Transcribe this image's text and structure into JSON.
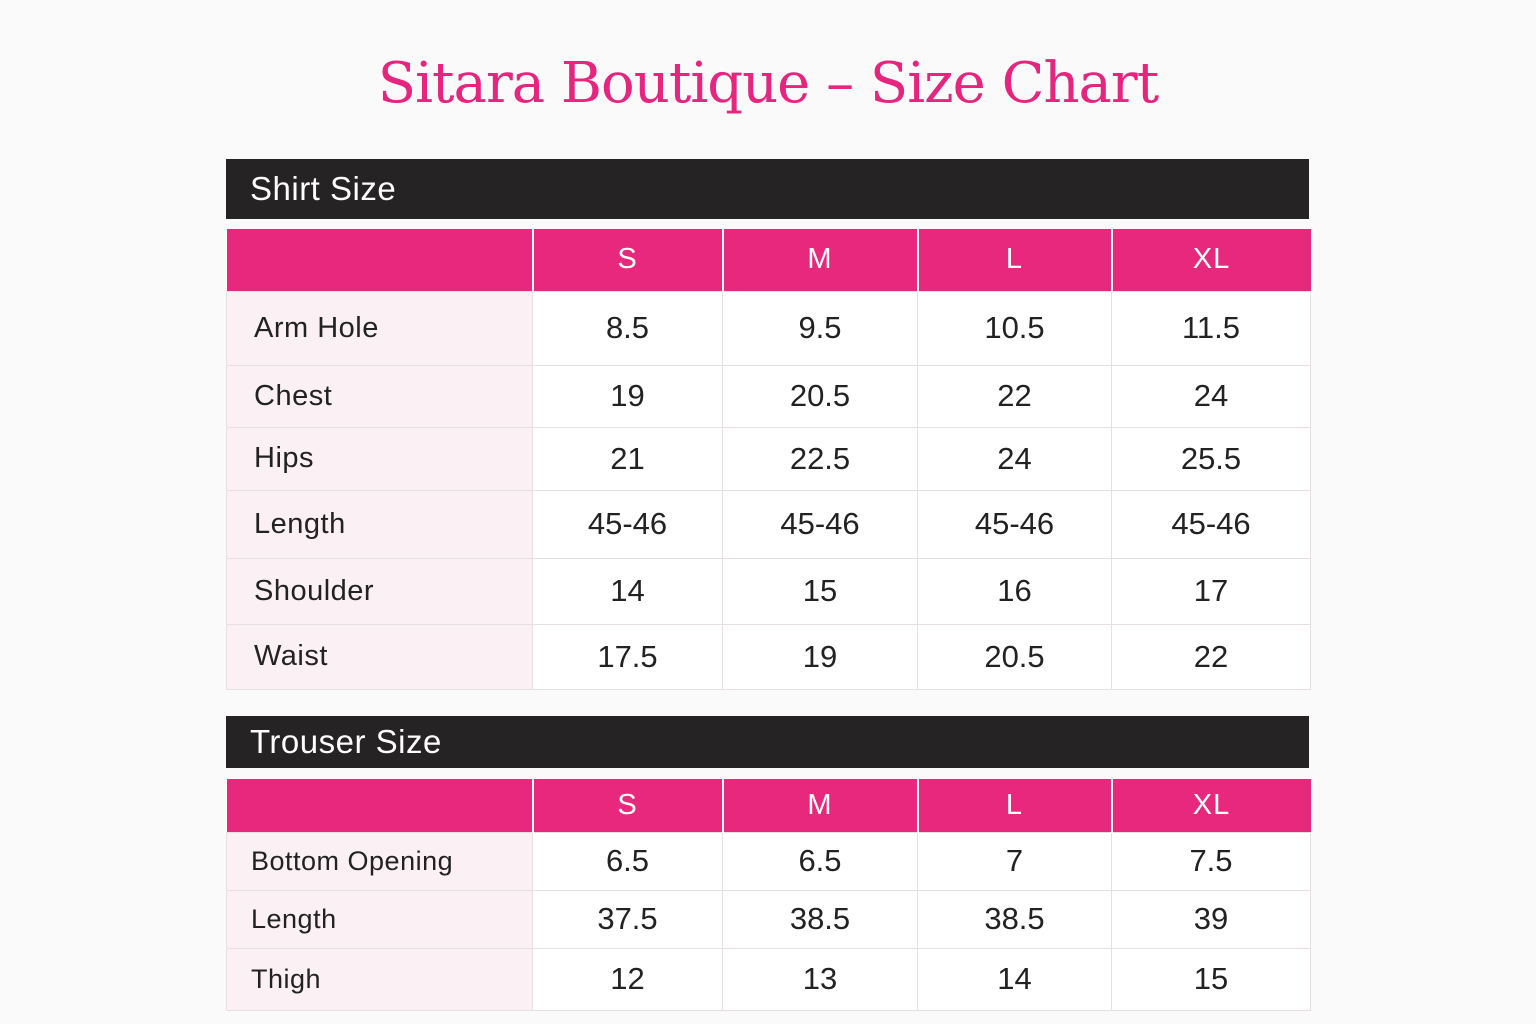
{
  "page": {
    "title": "Sitara Boutique – Size Chart"
  },
  "colors": {
    "accent": "#e8287c",
    "title": "#e6257e",
    "section_bar": "#262325",
    "label_cell_bg": "#fbf0f4"
  },
  "shirt": {
    "section_title": "Shirt Size",
    "headers": [
      "",
      "S",
      "M",
      "L",
      "XL"
    ],
    "rows": [
      {
        "label": "Arm Hole",
        "values": [
          "8.5",
          "9.5",
          "10.5",
          "11.5"
        ]
      },
      {
        "label": "Chest",
        "values": [
          "19",
          "20.5",
          "22",
          "24"
        ]
      },
      {
        "label": "Hips",
        "values": [
          "21",
          "22.5",
          "24",
          "25.5"
        ]
      },
      {
        "label": "Length",
        "values": [
          "45-46",
          "45-46",
          "45-46",
          "45-46"
        ]
      },
      {
        "label": "Shoulder",
        "values": [
          "14",
          "15",
          "16",
          "17"
        ]
      },
      {
        "label": "Waist",
        "values": [
          "17.5",
          "19",
          "20.5",
          "22"
        ]
      }
    ]
  },
  "trouser": {
    "section_title": "Trouser Size",
    "headers": [
      "",
      "S",
      "M",
      "L",
      "XL"
    ],
    "rows": [
      {
        "label": "Bottom Opening",
        "values": [
          "6.5",
          "6.5",
          "7",
          "7.5"
        ]
      },
      {
        "label": "Length",
        "values": [
          "37.5",
          "38.5",
          "38.5",
          "39"
        ]
      },
      {
        "label": "Thigh",
        "values": [
          "12",
          "13",
          "14",
          "15"
        ]
      }
    ]
  }
}
